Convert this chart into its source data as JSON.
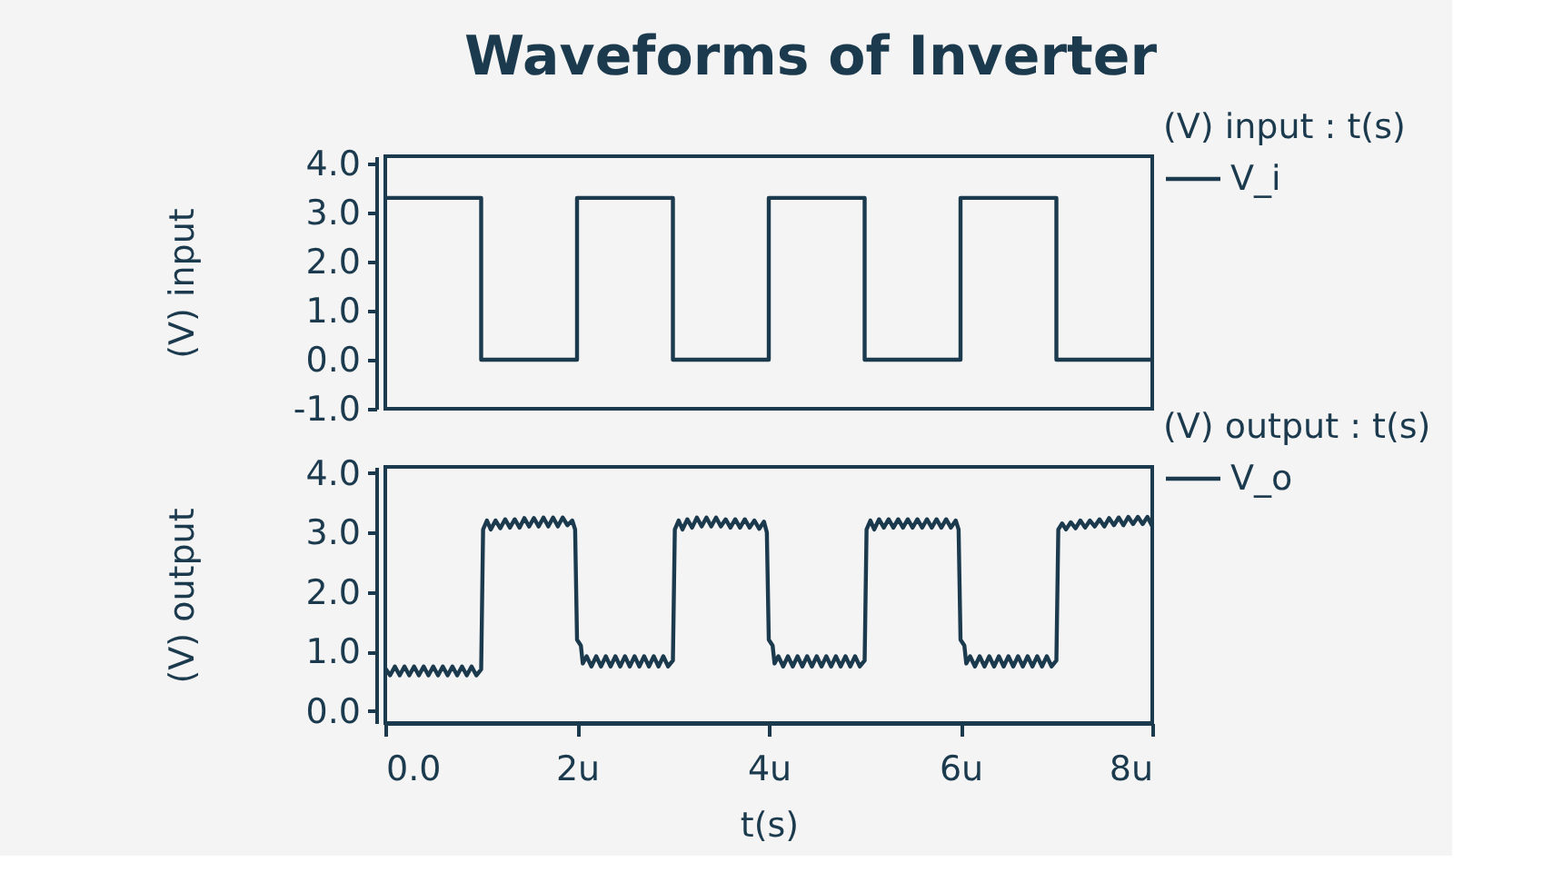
{
  "chart_data": [
    {
      "type": "step",
      "title": "Waveforms of Inverter",
      "ylabel": "(V) input",
      "legend_title": "(V) input : t(s)",
      "legend": "right",
      "tick_labels": "y",
      "xlim": [
        0,
        8
      ],
      "ylim": [
        -1,
        4.15
      ],
      "yticks": [
        {
          "value": -1,
          "label": "-1.0"
        },
        {
          "value": 0,
          "label": "0.0"
        },
        {
          "value": 1,
          "label": "1.0"
        },
        {
          "value": 2,
          "label": "2.0"
        },
        {
          "value": 3,
          "label": "3.0"
        },
        {
          "value": 4,
          "label": "4.0"
        }
      ],
      "series": [
        {
          "name": "V_i",
          "color": "#1c3a4e",
          "x": [
            0,
            1,
            2,
            3,
            4,
            5,
            6,
            7,
            8
          ],
          "values": [
            3.3,
            0,
            3.3,
            0,
            3.3,
            0,
            3.3,
            0,
            0
          ]
        }
      ]
    },
    {
      "type": "line",
      "xlabel": "t(s)",
      "ylabel": "(V) output",
      "legend_title": "(V) output : t(s)",
      "legend": "right",
      "xlim": [
        0,
        8
      ],
      "ylim": [
        -0.2,
        4.1
      ],
      "xticks": [
        {
          "value": 0,
          "label": "0.0"
        },
        {
          "value": 2,
          "label": "2u"
        },
        {
          "value": 4,
          "label": "4u"
        },
        {
          "value": 6,
          "label": "6u"
        },
        {
          "value": 8,
          "label": "8u"
        }
      ],
      "yticks": [
        {
          "value": 0,
          "label": "0.0"
        },
        {
          "value": 1,
          "label": "1.0"
        },
        {
          "value": 2,
          "label": "2.0"
        },
        {
          "value": 3,
          "label": "3.0"
        },
        {
          "value": 4,
          "label": "4.0"
        }
      ],
      "series": [
        {
          "name": "V_o",
          "color": "#1c3a4e",
          "x": [
            0,
            0.05,
            0.1,
            0.15,
            0.2,
            0.25,
            0.3,
            0.35,
            0.4,
            0.45,
            0.5,
            0.55,
            0.6,
            0.65,
            0.7,
            0.75,
            0.8,
            0.85,
            0.9,
            0.95,
            1,
            1.02,
            1.06,
            1.1,
            1.15,
            1.2,
            1.25,
            1.3,
            1.35,
            1.4,
            1.45,
            1.5,
            1.55,
            1.6,
            1.65,
            1.7,
            1.75,
            1.8,
            1.85,
            1.9,
            1.95,
            1.98,
            2,
            2.04,
            2.06,
            2.1,
            2.15,
            2.2,
            2.25,
            2.3,
            2.35,
            2.4,
            2.45,
            2.5,
            2.55,
            2.6,
            2.65,
            2.7,
            2.75,
            2.8,
            2.85,
            2.9,
            2.95,
            3,
            3.02,
            3.06,
            3.1,
            3.15,
            3.2,
            3.25,
            3.3,
            3.35,
            3.4,
            3.45,
            3.5,
            3.55,
            3.6,
            3.65,
            3.7,
            3.75,
            3.8,
            3.85,
            3.9,
            3.95,
            3.98,
            4,
            4.04,
            4.06,
            4.1,
            4.15,
            4.2,
            4.25,
            4.3,
            4.35,
            4.4,
            4.45,
            4.5,
            4.55,
            4.6,
            4.65,
            4.7,
            4.75,
            4.8,
            4.85,
            4.9,
            4.95,
            5,
            5.02,
            5.06,
            5.1,
            5.15,
            5.2,
            5.25,
            5.3,
            5.35,
            5.4,
            5.45,
            5.5,
            5.55,
            5.6,
            5.65,
            5.7,
            5.75,
            5.8,
            5.85,
            5.9,
            5.95,
            5.98,
            6,
            6.04,
            6.06,
            6.1,
            6.15,
            6.2,
            6.25,
            6.3,
            6.35,
            6.4,
            6.45,
            6.5,
            6.55,
            6.6,
            6.65,
            6.7,
            6.75,
            6.8,
            6.85,
            6.9,
            6.95,
            7,
            7.02,
            7.06,
            7.1,
            7.15,
            7.2,
            7.25,
            7.3,
            7.35,
            7.4,
            7.45,
            7.5,
            7.55,
            7.6,
            7.65,
            7.7,
            7.75,
            7.8,
            7.85,
            7.9,
            7.95,
            8
          ],
          "values": [
            0.72,
            0.6,
            0.75,
            0.6,
            0.75,
            0.6,
            0.75,
            0.6,
            0.75,
            0.6,
            0.75,
            0.6,
            0.75,
            0.6,
            0.75,
            0.6,
            0.75,
            0.6,
            0.75,
            0.6,
            0.7,
            3.05,
            3.2,
            3.05,
            3.2,
            3.07,
            3.22,
            3.08,
            3.22,
            3.08,
            3.24,
            3.1,
            3.24,
            3.1,
            3.25,
            3.1,
            3.25,
            3.1,
            3.25,
            3.12,
            3.2,
            3.05,
            1.2,
            1.1,
            0.8,
            0.92,
            0.75,
            0.92,
            0.75,
            0.92,
            0.75,
            0.92,
            0.75,
            0.92,
            0.75,
            0.92,
            0.75,
            0.92,
            0.75,
            0.92,
            0.75,
            0.92,
            0.75,
            0.85,
            3.05,
            3.2,
            3.05,
            3.22,
            3.08,
            3.25,
            3.1,
            3.25,
            3.1,
            3.25,
            3.1,
            3.22,
            3.08,
            3.22,
            3.08,
            3.22,
            3.08,
            3.2,
            3.06,
            3.18,
            3.0,
            1.2,
            1.1,
            0.8,
            0.92,
            0.75,
            0.92,
            0.75,
            0.92,
            0.75,
            0.92,
            0.75,
            0.92,
            0.75,
            0.92,
            0.75,
            0.92,
            0.75,
            0.92,
            0.75,
            0.92,
            0.75,
            0.85,
            3.05,
            3.2,
            3.05,
            3.22,
            3.08,
            3.22,
            3.08,
            3.22,
            3.08,
            3.22,
            3.08,
            3.22,
            3.08,
            3.22,
            3.08,
            3.22,
            3.08,
            3.22,
            3.08,
            3.2,
            3.05,
            1.2,
            1.1,
            0.8,
            0.92,
            0.75,
            0.92,
            0.75,
            0.92,
            0.75,
            0.92,
            0.75,
            0.92,
            0.75,
            0.92,
            0.75,
            0.92,
            0.75,
            0.92,
            0.75,
            0.92,
            0.75,
            0.85,
            3.05,
            3.15,
            3.05,
            3.17,
            3.07,
            3.2,
            3.08,
            3.2,
            3.1,
            3.22,
            3.1,
            3.24,
            3.12,
            3.25,
            3.12,
            3.26,
            3.14,
            3.26,
            3.14,
            3.26,
            3.1
          ]
        }
      ]
    }
  ]
}
